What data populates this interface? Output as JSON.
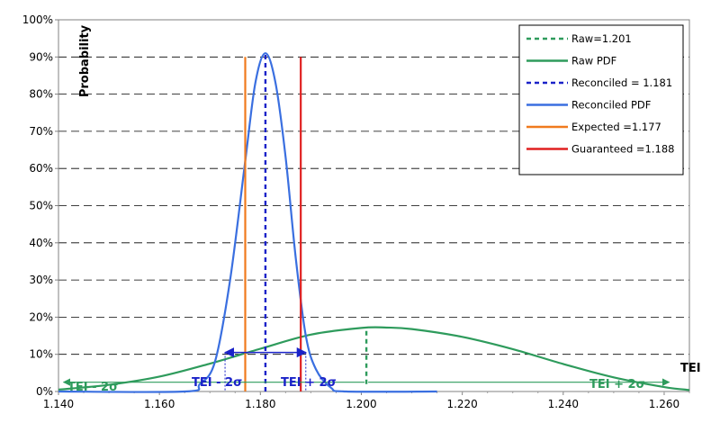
{
  "chart_data": {
    "type": "line",
    "ylabel": "Probability",
    "xlabel": "TEI",
    "xlim": [
      1.14,
      1.265
    ],
    "ylim": [
      0,
      1.0
    ],
    "x_ticks": [
      "1.140",
      "1.160",
      "1.180",
      "1.200",
      "1.220",
      "1.240",
      "1.260"
    ],
    "y_ticks": [
      "0%",
      "10%",
      "20%",
      "30%",
      "40%",
      "50%",
      "60%",
      "70%",
      "80%",
      "90%",
      "100%"
    ],
    "grid": "horizontal dashed",
    "legend_position": "top-right",
    "colors": {
      "raw": "#2e9b5c",
      "reconciled": "#3a6fe0",
      "reconciled_dotted": "#1a22c8",
      "expected": "#f07a1e",
      "guaranteed": "#e02020"
    },
    "series": [
      {
        "name": "Raw PDF",
        "x": [
          1.14,
          1.15,
          1.16,
          1.17,
          1.18,
          1.19,
          1.2,
          1.205,
          1.21,
          1.22,
          1.23,
          1.24,
          1.25,
          1.26,
          1.265
        ],
        "y": [
          0.005,
          0.018,
          0.04,
          0.075,
          0.115,
          0.153,
          0.171,
          0.172,
          0.168,
          0.147,
          0.114,
          0.074,
          0.038,
          0.012,
          0.004
        ]
      },
      {
        "name": "Reconciled PDF",
        "x": [
          1.14,
          1.165,
          1.168,
          1.171,
          1.174,
          1.177,
          1.179,
          1.181,
          1.183,
          1.185,
          1.187,
          1.189,
          1.191,
          1.194,
          1.197,
          1.215
        ],
        "y": [
          0.0,
          0.0,
          0.02,
          0.08,
          0.3,
          0.62,
          0.83,
          0.91,
          0.83,
          0.63,
          0.36,
          0.15,
          0.06,
          0.01,
          0.0,
          0.0
        ]
      }
    ],
    "reference_lines": [
      {
        "label": "Raw=1.201",
        "x": 1.201,
        "y_max": 0.171
      },
      {
        "label": "Reconciled = 1.181",
        "x": 1.181,
        "y_max": 0.91
      },
      {
        "label": "Expected =1.177",
        "x": 1.177,
        "y_max": 0.9
      },
      {
        "label": "Guaranteed =1.188",
        "x": 1.188,
        "y_max": 0.9
      }
    ],
    "intervals": [
      {
        "name": "Raw ±2σ",
        "x_from": 1.141,
        "x_mid": 1.201,
        "x_to": 1.261,
        "y": 0.025,
        "left_label": "TEI - 2σ",
        "right_label": "TEI + 2σ"
      },
      {
        "name": "Reconciled ±2σ",
        "x_from": 1.173,
        "x_mid": 1.181,
        "x_to": 1.189,
        "y": 0.105,
        "left_label": "TEI - 2σ",
        "right_label": "TEI + 2σ"
      }
    ],
    "legend": [
      {
        "label": "Raw=1.201",
        "style": "dashed",
        "color": "#2e9b5c"
      },
      {
        "label": "Raw PDF",
        "style": "solid",
        "color": "#2e9b5c"
      },
      {
        "label": "Reconciled = 1.181",
        "style": "dashed",
        "color": "#1a22c8"
      },
      {
        "label": "Reconciled PDF",
        "style": "solid",
        "color": "#3a6fe0"
      },
      {
        "label": "Expected =1.177",
        "style": "solid",
        "color": "#f07a1e"
      },
      {
        "label": "Guaranteed =1.188",
        "style": "solid",
        "color": "#e02020"
      }
    ]
  }
}
